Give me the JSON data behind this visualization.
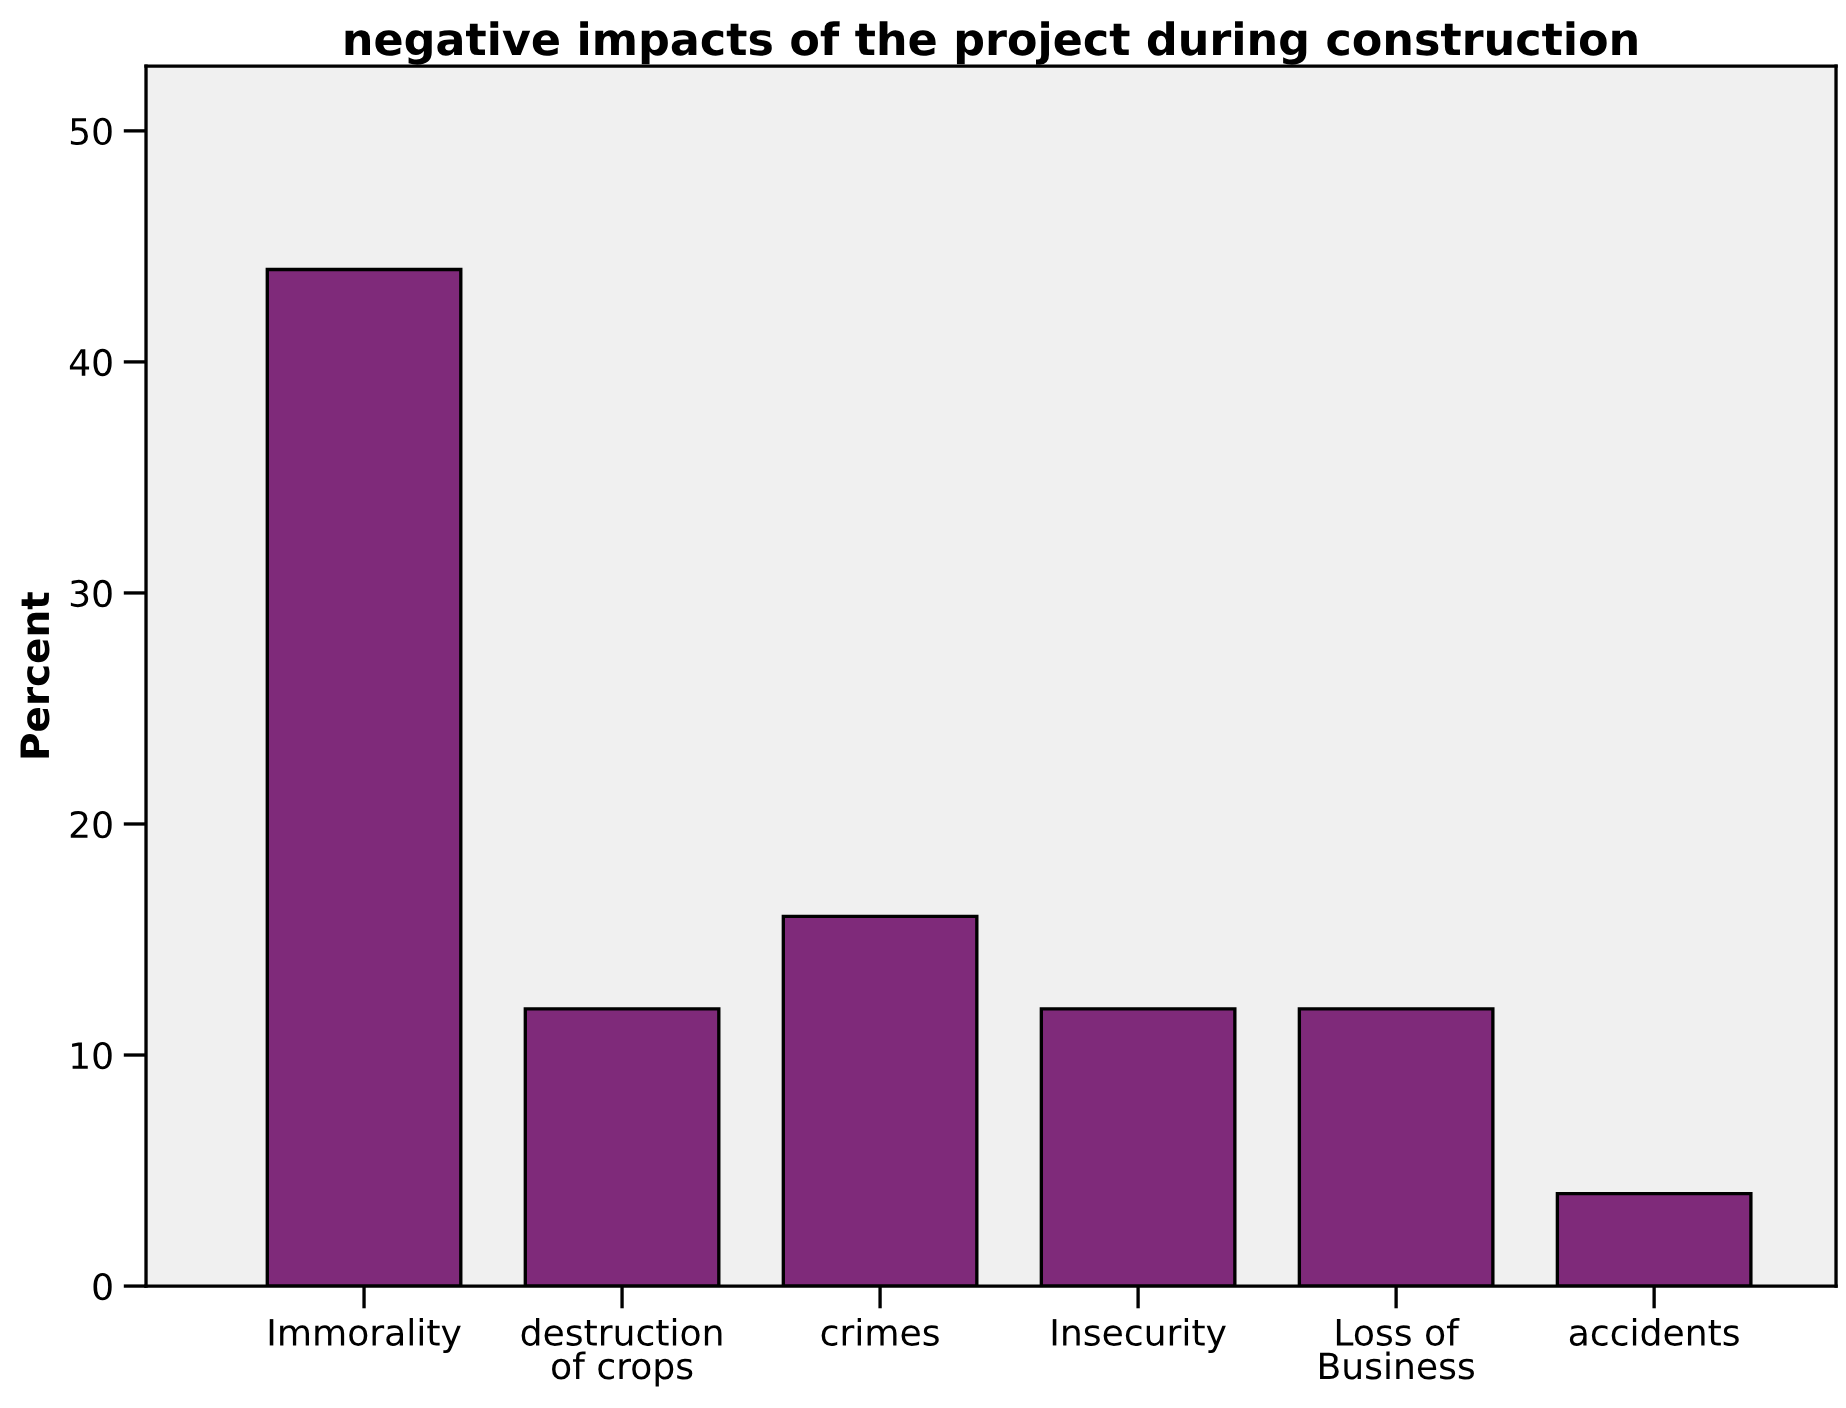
{
  "chart_data": {
    "type": "bar",
    "title": "negative impacts of the project during construction",
    "ylabel": "Percent",
    "categories": [
      "Immorality",
      "destruction\nof crops",
      "crimes",
      "Insecurity",
      "Loss of\nBusiness",
      "accidents"
    ],
    "values": [
      44,
      12,
      16,
      12,
      12,
      4
    ],
    "color": "#7f2a7a",
    "ylim": [
      0,
      52.8
    ],
    "yticks": [
      0,
      10,
      20,
      30,
      40,
      50
    ],
    "grid": false
  }
}
